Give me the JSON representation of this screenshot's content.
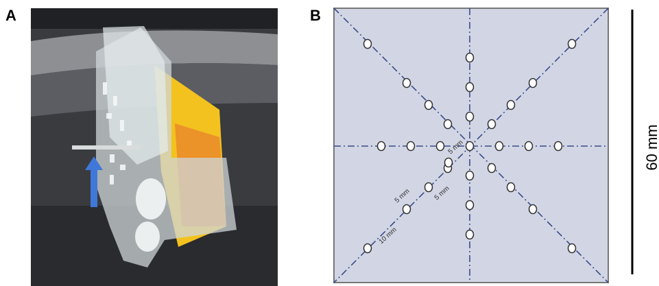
{
  "panels": [
    {
      "label": "A"
    },
    {
      "label": "B",
      "annotations": [
        "5 mm",
        "5 mm",
        "5 mm",
        "10 mm"
      ],
      "scale_bar": "60 mm"
    }
  ]
}
